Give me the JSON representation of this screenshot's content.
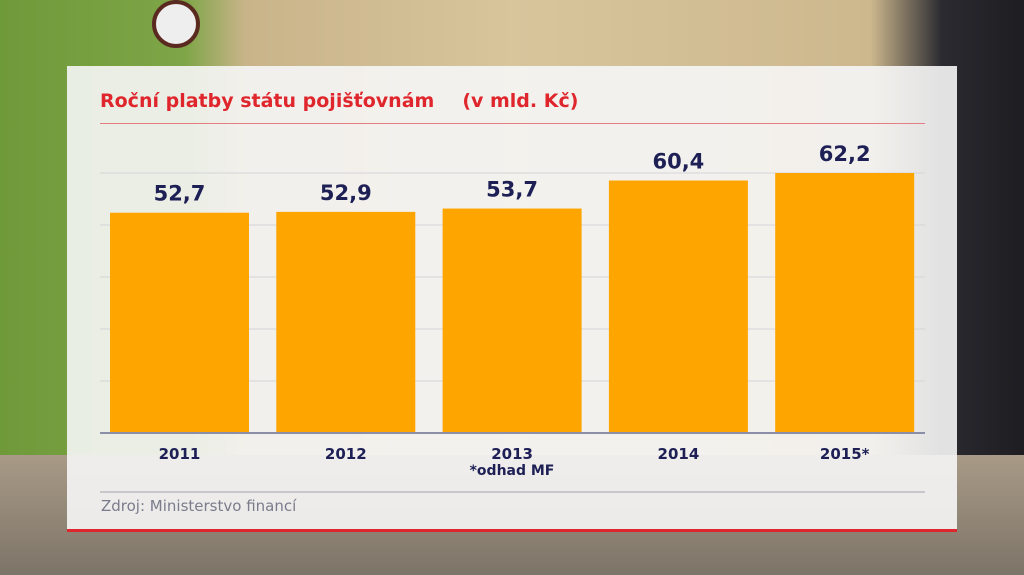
{
  "chart_data": {
    "type": "bar",
    "title": "Roční platby státu pojišťovnám",
    "unit": "(v mld. Kč)",
    "categories": [
      "2011",
      "2012",
      "2013",
      "2014",
      "2015*"
    ],
    "values": [
      52.7,
      52.9,
      53.7,
      60.4,
      62.2
    ],
    "value_labels": [
      "52,7",
      "52,9",
      "53,7",
      "60,4",
      "62,2"
    ],
    "ylim": [
      0,
      62.2
    ],
    "grid": true,
    "bar_color": "#ffa500",
    "label_color": "#1d1f55",
    "note": "*odhad MF",
    "source": "Zdroj: Ministerstvo financí"
  }
}
